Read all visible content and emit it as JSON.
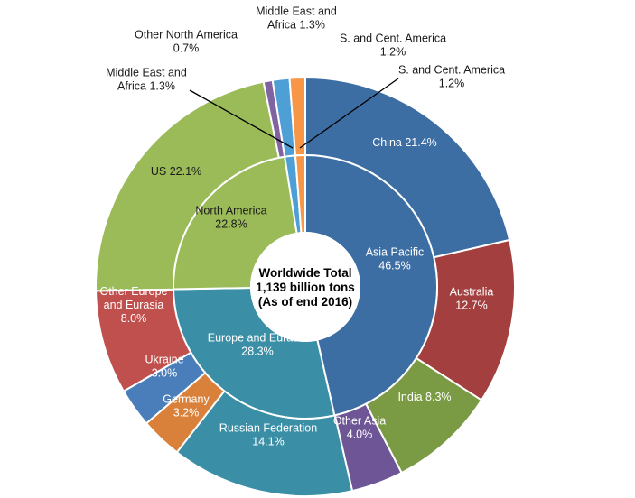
{
  "chart_data": {
    "type": "pie",
    "subtype": "doughnut-two-level",
    "center_text": [
      "Worldwide Total",
      "1,139 billion tons",
      "(As of end 2016)"
    ],
    "inner_ring": [
      {
        "name": "Asia Pacific",
        "value": 46.5,
        "label": [
          "Asia Pacific",
          "46.5%"
        ],
        "color": "#3d6ea3"
      },
      {
        "name": "Europe and Eurasia",
        "value": 28.3,
        "label": [
          "Europe and Eurasia",
          "28.3%"
        ],
        "color": "#3a8fa6"
      },
      {
        "name": "North America",
        "value": 22.8,
        "label": [
          "North America",
          "22.8%"
        ],
        "color": "#9bbb59"
      },
      {
        "name": "Middle East and Africa",
        "value": 1.3,
        "label": [
          "Middle East and",
          "Africa 1.3%"
        ],
        "color": "#4d9fd6"
      },
      {
        "name": "S. and Cent. America",
        "value": 1.2,
        "label": [
          "S. and Cent. America",
          "1.2%"
        ],
        "color": "#f79646"
      }
    ],
    "outer_ring": [
      {
        "name": "China",
        "value": 21.4,
        "label": [
          "China 21.4%"
        ],
        "color": "#3d6ea3"
      },
      {
        "name": "Australia",
        "value": 12.7,
        "label": [
          "Australia",
          "12.7%"
        ],
        "color": "#a33f3f"
      },
      {
        "name": "India",
        "value": 8.3,
        "label": [
          "India 8.3%"
        ],
        "color": "#7a9a43"
      },
      {
        "name": "Other Asia",
        "value": 4.0,
        "label": [
          "Other Asia",
          "4.0%"
        ],
        "color": "#6e5595"
      },
      {
        "name": "Russian Federation",
        "value": 14.1,
        "label": [
          "Russian Federation",
          "14.1%"
        ],
        "color": "#3a8fa6"
      },
      {
        "name": "Germany",
        "value": 3.2,
        "label": [
          "Germany",
          "3.2%"
        ],
        "color": "#d9813a"
      },
      {
        "name": "Ukraine",
        "value": 3.0,
        "label": [
          "Ukraine",
          "3.0%"
        ],
        "color": "#4a7ebb"
      },
      {
        "name": "Other Europe and Eurasia",
        "value": 8.0,
        "label": [
          "Other Europe",
          "and Eurasia",
          "8.0%"
        ],
        "color": "#c0504d"
      },
      {
        "name": "US",
        "value": 22.1,
        "label": [
          "US 22.1%"
        ],
        "color": "#9bbb59"
      },
      {
        "name": "Other North America",
        "value": 0.7,
        "label": [
          "Other North America",
          "0.7%"
        ],
        "color": "#8064a2"
      },
      {
        "name": "Middle East and Africa",
        "value": 1.3,
        "label": [
          "Middle East and",
          "Africa 1.3%"
        ],
        "color": "#4d9fd6"
      },
      {
        "name": "S. and Cent. America",
        "value": 1.2,
        "label": [
          "S. and Cent. America",
          "1.2%"
        ],
        "color": "#f79646"
      }
    ],
    "legend": "none"
  }
}
